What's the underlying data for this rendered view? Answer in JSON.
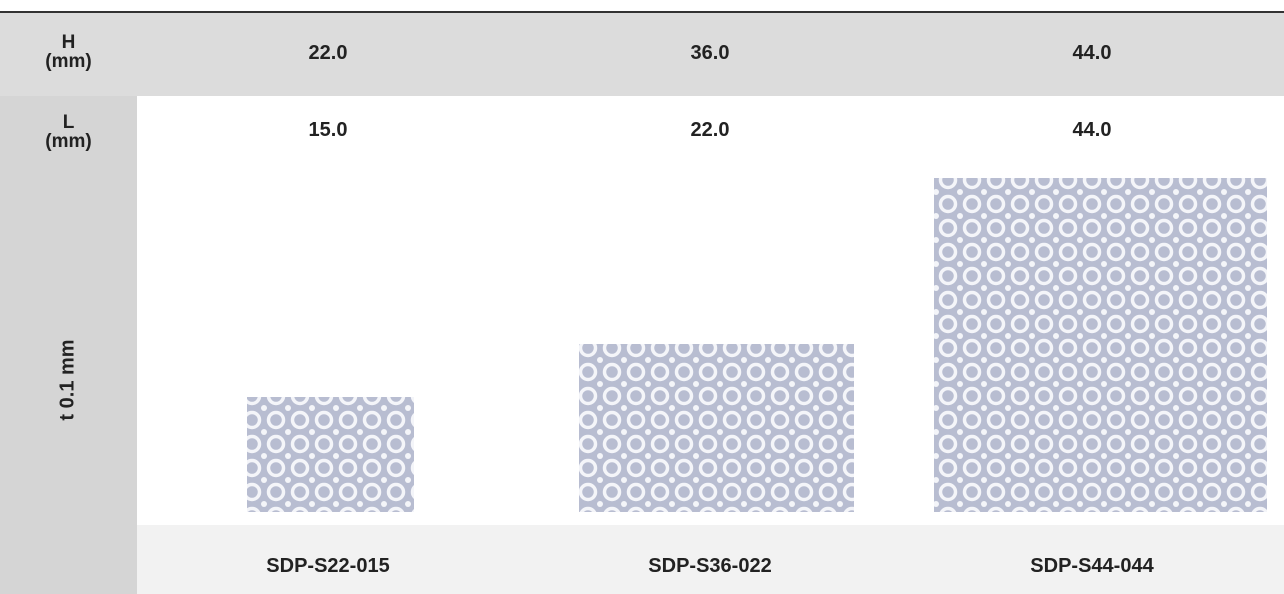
{
  "rows": [
    {
      "label": [
        "H",
        "(mm)"
      ],
      "cells": [
        "22.0",
        "36.0",
        "44.0"
      ]
    },
    {
      "label": [
        "L",
        "(mm)"
      ],
      "cells": [
        "15.0",
        "22.0",
        "44.0"
      ]
    }
  ],
  "image_row_label": "t 0.1 mm",
  "codes": [
    "SDP-S22-015",
    "SDP-S36-022",
    "SDP-S44-044"
  ]
}
